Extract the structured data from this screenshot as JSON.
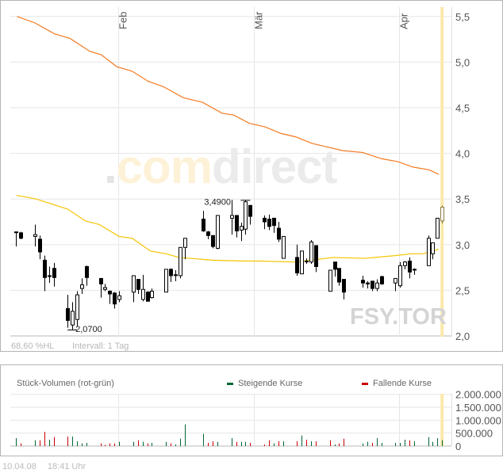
{
  "symbol": "FSY.TOR",
  "watermark": {
    "dot": ".",
    "com": "com",
    "direct": "direct"
  },
  "footer": {
    "hl": "68,60 %HL",
    "interval": "Intervall: 1 Tag"
  },
  "timestamp": {
    "date": "10.04.08",
    "time": "18:41 Uhr"
  },
  "colors": {
    "ma_long": "#f47a20",
    "ma_short": "#f5c400",
    "up": "#006633",
    "down": "#cc0000",
    "highlight": "#fbe9aa"
  },
  "chart_data": [
    {
      "type": "candlestick",
      "title": "FSY.TOR",
      "x_unit": "day of year 2008",
      "month_labels": [
        {
          "label": "Feb",
          "day": 32
        },
        {
          "label": "Mär",
          "day": 61
        },
        {
          "label": "Apr",
          "day": 92
        }
      ],
      "yticks": [
        "2,0",
        "2,5",
        "3,0",
        "3,5",
        "4,0",
        "4,5",
        "5,0",
        "5,5"
      ],
      "ylim": [
        2.0,
        5.5
      ],
      "annotations": [
        {
          "label": "3,4900",
          "day": 59,
          "value": 3.49
        },
        {
          "label": "2,0700",
          "day": 22,
          "value": 2.07
        }
      ],
      "candles": [
        [
          10,
          3.14,
          3.14,
          2.98,
          3.14
        ],
        [
          11,
          3.13,
          3.14,
          3.06,
          3.07
        ],
        [
          14,
          3.09,
          3.22,
          2.98,
          3.11
        ],
        [
          15,
          3.06,
          3.1,
          2.84,
          2.92
        ],
        [
          16,
          2.83,
          2.88,
          2.49,
          2.64
        ],
        [
          17,
          2.66,
          2.76,
          2.58,
          2.66
        ],
        [
          18,
          2.74,
          2.8,
          2.54,
          2.64
        ],
        [
          21,
          2.3,
          2.45,
          2.09,
          2.17
        ],
        [
          22,
          2.12,
          2.37,
          2.07,
          2.27
        ],
        [
          23,
          2.18,
          2.49,
          2.1,
          2.45
        ],
        [
          24,
          2.52,
          2.63,
          2.46,
          2.56
        ],
        [
          25,
          2.76,
          2.77,
          2.55,
          2.64
        ],
        [
          28,
          2.63,
          2.63,
          2.42,
          2.57
        ],
        [
          29,
          2.51,
          2.57,
          2.49,
          2.53
        ],
        [
          30,
          2.49,
          2.5,
          2.35,
          2.46
        ],
        [
          31,
          2.47,
          2.48,
          2.3,
          2.35
        ],
        [
          32,
          2.4,
          2.49,
          2.37,
          2.44
        ],
        [
          35,
          2.48,
          2.66,
          2.37,
          2.66
        ],
        [
          36,
          2.62,
          2.62,
          2.46,
          2.51
        ],
        [
          37,
          2.4,
          2.67,
          2.38,
          2.51
        ],
        [
          38,
          2.48,
          2.49,
          2.38,
          2.38
        ],
        [
          39,
          2.42,
          2.52,
          2.41,
          2.49
        ],
        [
          42,
          2.48,
          2.73,
          2.48,
          2.73
        ],
        [
          43,
          2.73,
          2.74,
          2.59,
          2.66
        ],
        [
          44,
          2.67,
          2.72,
          2.6,
          2.67
        ],
        [
          45,
          2.66,
          2.97,
          2.63,
          2.97
        ],
        [
          46,
          2.97,
          3.07,
          2.84,
          3.07
        ],
        [
          50,
          3.28,
          3.37,
          3.14,
          3.15
        ],
        [
          51,
          3.14,
          3.15,
          3.06,
          3.1
        ],
        [
          52,
          3.1,
          3.1,
          2.96,
          2.98
        ],
        [
          53,
          2.96,
          3.32,
          2.95,
          3.32
        ],
        [
          56,
          3.29,
          3.49,
          3.11,
          3.32
        ],
        [
          57,
          3.32,
          3.32,
          3.08,
          3.15
        ],
        [
          58,
          3.16,
          3.24,
          3.04,
          3.2
        ],
        [
          59,
          3.17,
          3.49,
          3.11,
          3.47
        ],
        [
          60,
          3.43,
          3.43,
          3.22,
          3.31
        ],
        [
          63,
          3.29,
          3.32,
          3.17,
          3.25
        ],
        [
          64,
          3.28,
          3.33,
          3.16,
          3.2
        ],
        [
          65,
          3.29,
          3.29,
          3.13,
          3.21
        ],
        [
          66,
          3.18,
          3.25,
          3.03,
          3.06
        ],
        [
          67,
          2.85,
          3.09,
          2.85,
          3.09
        ],
        [
          70,
          2.86,
          3.0,
          2.66,
          2.69
        ],
        [
          71,
          2.68,
          2.93,
          2.68,
          2.93
        ],
        [
          72,
          2.82,
          2.85,
          2.79,
          2.82
        ],
        [
          73,
          2.81,
          3.05,
          2.79,
          3.03
        ],
        [
          74,
          2.99,
          2.99,
          2.7,
          2.76
        ],
        [
          77,
          2.49,
          2.72,
          2.49,
          2.72
        ],
        [
          78,
          2.81,
          2.81,
          2.65,
          2.73
        ],
        [
          79,
          2.74,
          2.74,
          2.55,
          2.59
        ],
        [
          80,
          2.62,
          2.62,
          2.4,
          2.48
        ],
        [
          84,
          2.61,
          2.66,
          2.53,
          2.58
        ],
        [
          85,
          2.58,
          2.6,
          2.52,
          2.57
        ],
        [
          86,
          2.6,
          2.6,
          2.49,
          2.52
        ],
        [
          87,
          2.52,
          2.62,
          2.49,
          2.58
        ],
        [
          88,
          2.65,
          2.66,
          2.56,
          2.57
        ],
        [
          91,
          2.58,
          2.63,
          2.49,
          2.63
        ],
        [
          92,
          2.55,
          2.81,
          2.53,
          2.77
        ],
        [
          93,
          2.77,
          2.82,
          2.73,
          2.81
        ],
        [
          94,
          2.82,
          2.86,
          2.63,
          2.7
        ],
        [
          95,
          2.73,
          2.74,
          2.67,
          2.73
        ],
        [
          98,
          2.77,
          3.1,
          2.77,
          3.07
        ],
        [
          99,
          2.9,
          3.02,
          2.84,
          3.02
        ],
        [
          100,
          3.07,
          3.29,
          3.07,
          3.29
        ],
        [
          101,
          3.26,
          3.43,
          3.23,
          3.41
        ]
      ],
      "series": [
        {
          "name": "MA long",
          "color_key": "ma_long",
          "points": [
            [
              10.2,
              5.5
            ],
            [
              14,
              5.43
            ],
            [
              18.2,
              5.31
            ],
            [
              21.5,
              5.26
            ],
            [
              25.7,
              5.12
            ],
            [
              28.2,
              5.08
            ],
            [
              31.5,
              4.95
            ],
            [
              34.8,
              4.9
            ],
            [
              38.2,
              4.79
            ],
            [
              41.5,
              4.73
            ],
            [
              45.7,
              4.61
            ],
            [
              49.8,
              4.56
            ],
            [
              54,
              4.44
            ],
            [
              56.5,
              4.42
            ],
            [
              59.8,
              4.33
            ],
            [
              63.2,
              4.29
            ],
            [
              66.5,
              4.22
            ],
            [
              69.8,
              4.18
            ],
            [
              73.2,
              4.11
            ],
            [
              76.5,
              4.07
            ],
            [
              79.8,
              4.03
            ],
            [
              84,
              4.01
            ],
            [
              88.2,
              3.94
            ],
            [
              91.5,
              3.91
            ],
            [
              94.8,
              3.85
            ],
            [
              98.2,
              3.82
            ],
            [
              100.3,
              3.77
            ]
          ]
        },
        {
          "name": "MA short",
          "color_key": "ma_short",
          "points": [
            [
              10.1,
              3.54
            ],
            [
              14.3,
              3.5
            ],
            [
              21,
              3.39
            ],
            [
              24.8,
              3.26
            ],
            [
              27.8,
              3.22
            ],
            [
              32,
              3.09
            ],
            [
              34.8,
              3.07
            ],
            [
              38.7,
              2.93
            ],
            [
              42,
              2.9
            ],
            [
              44.8,
              2.86
            ],
            [
              52,
              2.83
            ],
            [
              58.7,
              2.82
            ],
            [
              62,
              2.82
            ],
            [
              69.8,
              2.81
            ],
            [
              77.7,
              2.86
            ],
            [
              84.3,
              2.85
            ],
            [
              91,
              2.88
            ],
            [
              94.3,
              2.9
            ],
            [
              97,
              2.9
            ],
            [
              100.3,
              2.95
            ]
          ]
        }
      ],
      "highlight_day": 101
    },
    {
      "type": "bar",
      "title": "Stück-Volumen (rot-grün)",
      "legend": [
        {
          "label": "Steigende Kurse",
          "color_key": "up"
        },
        {
          "label": "Fallende Kurse",
          "color_key": "down"
        }
      ],
      "legend_placement": "top",
      "yticks": [
        "0",
        "500.000",
        "1.000.000",
        "1.500.000",
        "2.000.000"
      ],
      "ylim": [
        0,
        2000000
      ],
      "bars": [
        [
          10,
          306000,
          "up"
        ],
        [
          11,
          102000,
          "down"
        ],
        [
          14,
          224000,
          "up"
        ],
        [
          15,
          224000,
          "down"
        ],
        [
          16,
          551000,
          "down"
        ],
        [
          17,
          245000,
          "up"
        ],
        [
          18,
          347000,
          "down"
        ],
        [
          21,
          367000,
          "down"
        ],
        [
          22,
          367000,
          "up"
        ],
        [
          23,
          184000,
          "up"
        ],
        [
          24,
          102000,
          "up"
        ],
        [
          25,
          122000,
          "up"
        ],
        [
          28,
          102000,
          "down"
        ],
        [
          29,
          41000,
          "down"
        ],
        [
          30,
          102000,
          "down"
        ],
        [
          31,
          102000,
          "down"
        ],
        [
          32,
          163000,
          "up"
        ],
        [
          35,
          163000,
          "up"
        ],
        [
          36,
          224000,
          "down"
        ],
        [
          37,
          163000,
          "up"
        ],
        [
          38,
          102000,
          "down"
        ],
        [
          39,
          122000,
          "up"
        ],
        [
          42,
          163000,
          "up"
        ],
        [
          43,
          102000,
          "down"
        ],
        [
          44,
          61000,
          "up"
        ],
        [
          45,
          286000,
          "up"
        ],
        [
          46,
          837000,
          "up"
        ],
        [
          50,
          469000,
          "up"
        ],
        [
          51,
          122000,
          "down"
        ],
        [
          52,
          184000,
          "down"
        ],
        [
          53,
          163000,
          "up"
        ],
        [
          56,
          306000,
          "up"
        ],
        [
          57,
          163000,
          "down"
        ],
        [
          58,
          163000,
          "up"
        ],
        [
          59,
          163000,
          "up"
        ],
        [
          60,
          122000,
          "down"
        ],
        [
          63,
          61000,
          "down"
        ],
        [
          64,
          224000,
          "down"
        ],
        [
          65,
          102000,
          "up"
        ],
        [
          66,
          184000,
          "down"
        ],
        [
          67,
          184000,
          "up"
        ],
        [
          70,
          184000,
          "down"
        ],
        [
          71,
          408000,
          "up"
        ],
        [
          72,
          245000,
          "down"
        ],
        [
          73,
          184000,
          "up"
        ],
        [
          74,
          184000,
          "down"
        ],
        [
          77,
          224000,
          "down"
        ],
        [
          78,
          61000,
          "up"
        ],
        [
          79,
          102000,
          "down"
        ],
        [
          80,
          286000,
          "down"
        ],
        [
          84,
          102000,
          "up"
        ],
        [
          85,
          163000,
          "up"
        ],
        [
          86,
          122000,
          "down"
        ],
        [
          87,
          306000,
          "up"
        ],
        [
          88,
          122000,
          "up"
        ],
        [
          91,
          122000,
          "up"
        ],
        [
          92,
          122000,
          "up"
        ],
        [
          93,
          245000,
          "up"
        ],
        [
          94,
          224000,
          "down"
        ],
        [
          95,
          184000,
          "up"
        ],
        [
          98,
          347000,
          "up"
        ],
        [
          99,
          163000,
          "up"
        ],
        [
          100,
          306000,
          "up"
        ],
        [
          101,
          224000,
          "up"
        ]
      ]
    }
  ]
}
